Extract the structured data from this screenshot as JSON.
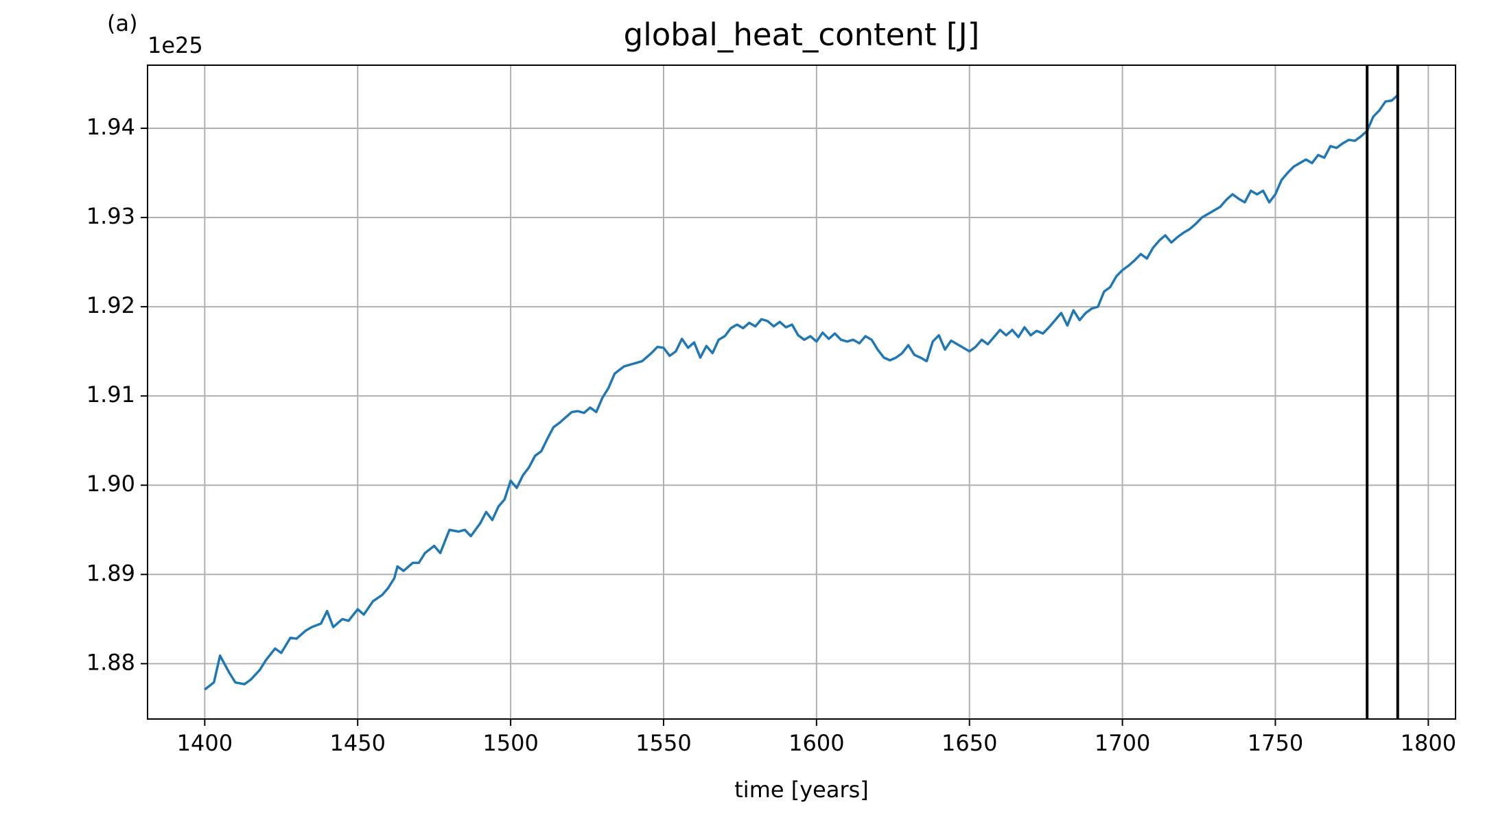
{
  "chart_data": {
    "type": "line",
    "title": "global_heat_content [J]",
    "panel_label": "(a)",
    "offset_label": "1e25",
    "xlabel": "time [years]",
    "x": [
      1400,
      1403,
      1405,
      1408,
      1410,
      1413,
      1415,
      1418,
      1420,
      1423,
      1425,
      1428,
      1430,
      1433,
      1435,
      1438,
      1440,
      1442,
      1445,
      1447,
      1450,
      1452,
      1455,
      1458,
      1460,
      1462,
      1463,
      1465,
      1468,
      1470,
      1472,
      1475,
      1477,
      1480,
      1483,
      1485,
      1487,
      1490,
      1492,
      1494,
      1496,
      1498,
      1500,
      1502,
      1504,
      1506,
      1508,
      1510,
      1512,
      1514,
      1516,
      1518,
      1520,
      1522,
      1524,
      1526,
      1528,
      1530,
      1532,
      1534,
      1537,
      1540,
      1543,
      1546,
      1548,
      1550,
      1552,
      1554,
      1556,
      1558,
      1560,
      1562,
      1564,
      1566,
      1568,
      1570,
      1572,
      1574,
      1576,
      1578,
      1580,
      1582,
      1584,
      1586,
      1588,
      1590,
      1592,
      1594,
      1596,
      1598,
      1600,
      1602,
      1604,
      1606,
      1608,
      1610,
      1612,
      1614,
      1616,
      1618,
      1620,
      1622,
      1624,
      1626,
      1628,
      1630,
      1632,
      1634,
      1636,
      1638,
      1640,
      1642,
      1644,
      1646,
      1648,
      1650,
      1652,
      1654,
      1656,
      1658,
      1660,
      1662,
      1664,
      1666,
      1668,
      1670,
      1672,
      1674,
      1676,
      1678,
      1680,
      1682,
      1684,
      1686,
      1688,
      1690,
      1692,
      1694,
      1696,
      1698,
      1700,
      1702,
      1704,
      1706,
      1708,
      1710,
      1712,
      1714,
      1716,
      1718,
      1720,
      1722,
      1724,
      1726,
      1728,
      1730,
      1732,
      1734,
      1736,
      1738,
      1740,
      1742,
      1744,
      1746,
      1748,
      1750,
      1752,
      1754,
      1756,
      1758,
      1760,
      1762,
      1764,
      1766,
      1768,
      1770,
      1772,
      1774,
      1776,
      1778,
      1780,
      1782,
      1784,
      1786,
      1788,
      1790
    ],
    "series": [
      {
        "color": "#1f77b4",
        "values": [
          1.8771,
          1.8779,
          1.8809,
          1.879,
          1.8779,
          1.8777,
          1.8782,
          1.8793,
          1.8804,
          1.8817,
          1.8812,
          1.8829,
          1.8828,
          1.8837,
          1.8841,
          1.8845,
          1.8859,
          1.8841,
          1.885,
          1.8848,
          1.8861,
          1.8855,
          1.887,
          1.8877,
          1.8885,
          1.8896,
          1.8909,
          1.8904,
          1.8913,
          1.8913,
          1.8924,
          1.8932,
          1.8924,
          1.895,
          1.8948,
          1.895,
          1.8943,
          1.8957,
          1.897,
          1.8961,
          1.8976,
          1.8984,
          1.9005,
          1.8997,
          1.9011,
          1.902,
          1.9033,
          1.9038,
          1.9052,
          1.9065,
          1.907,
          1.9076,
          1.9082,
          1.9083,
          1.9081,
          1.9087,
          1.9082,
          1.9098,
          1.9109,
          1.9125,
          1.9133,
          1.9136,
          1.9139,
          1.9148,
          1.9155,
          1.9154,
          1.9145,
          1.915,
          1.9164,
          1.9154,
          1.916,
          1.9143,
          1.9156,
          1.9148,
          1.9163,
          1.9167,
          1.9176,
          1.918,
          1.9176,
          1.9182,
          1.9178,
          1.9186,
          1.9184,
          1.9178,
          1.9183,
          1.9177,
          1.918,
          1.9168,
          1.9163,
          1.9167,
          1.9161,
          1.9171,
          1.9164,
          1.917,
          1.9163,
          1.9161,
          1.9163,
          1.9159,
          1.9167,
          1.9163,
          1.9152,
          1.9143,
          1.914,
          1.9143,
          1.9148,
          1.9157,
          1.9146,
          1.9143,
          1.9139,
          1.9161,
          1.9168,
          1.9152,
          1.9162,
          1.9158,
          1.9154,
          1.915,
          1.9155,
          1.9163,
          1.9158,
          1.9166,
          1.9174,
          1.9168,
          1.9174,
          1.9166,
          1.9177,
          1.9168,
          1.9173,
          1.917,
          1.9177,
          1.9185,
          1.9193,
          1.9179,
          1.9196,
          1.9185,
          1.9193,
          1.9198,
          1.92,
          1.9217,
          1.9222,
          1.9234,
          1.9241,
          1.9246,
          1.9252,
          1.9259,
          1.9254,
          1.9266,
          1.9274,
          1.928,
          1.9272,
          1.9278,
          1.9283,
          1.9287,
          1.9293,
          1.93,
          1.9304,
          1.9308,
          1.9312,
          1.932,
          1.9326,
          1.9321,
          1.9317,
          1.933,
          1.9326,
          1.933,
          1.9317,
          1.9326,
          1.9342,
          1.935,
          1.9357,
          1.9361,
          1.9365,
          1.9361,
          1.937,
          1.9367,
          1.938,
          1.9378,
          1.9383,
          1.9387,
          1.9386,
          1.9391,
          1.9397,
          1.9413,
          1.942,
          1.943,
          1.9431,
          1.9437
        ]
      }
    ],
    "vlines": [
      1780,
      1790
    ],
    "vline_color": "#000000",
    "xlim": [
      1381.3,
      1808.9
    ],
    "xticks": [
      1400,
      1450,
      1500,
      1550,
      1600,
      1650,
      1700,
      1750,
      1800
    ],
    "ylim": [
      1.8738,
      1.94707
    ],
    "yticks": [
      1.88,
      1.89,
      {
        "value": 1.9,
        "label": "1.90"
      },
      1.91,
      1.92,
      1.93,
      1.94
    ],
    "grid": true,
    "grid_color": "#b0b0b0"
  }
}
